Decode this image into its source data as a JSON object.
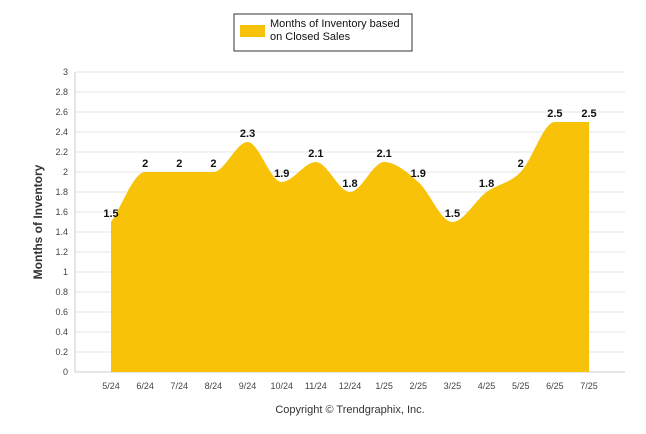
{
  "chart_data": {
    "type": "area",
    "title": "",
    "xlabel": "",
    "ylabel": "Months of Inventory",
    "categories": [
      "5/24",
      "6/24",
      "7/24",
      "8/24",
      "9/24",
      "10/24",
      "11/24",
      "12/24",
      "1/25",
      "2/25",
      "3/25",
      "4/25",
      "5/25",
      "6/25",
      "7/25"
    ],
    "series": [
      {
        "name": "Months of Inventory based on Closed Sales",
        "values": [
          1.5,
          2,
          2,
          2,
          2.3,
          1.9,
          2.1,
          1.8,
          2.1,
          1.9,
          1.5,
          1.8,
          2,
          2.5,
          2.5
        ],
        "color": "#f7c207"
      }
    ],
    "ylim": [
      0,
      3
    ],
    "yticks": [
      "0",
      "0.2",
      "0.4",
      "0.6",
      "0.8",
      "1",
      "1.2",
      "1.4",
      "1.6",
      "1.8",
      "2",
      "2.2",
      "2.4",
      "2.6",
      "2.8",
      "3"
    ],
    "grid": true,
    "legend_position": "top-center"
  },
  "legend": {
    "line1": "Months of Inventory based",
    "line2": "on Closed Sales"
  },
  "footer": {
    "copyright": "Copyright © Trendgraphix, Inc."
  }
}
